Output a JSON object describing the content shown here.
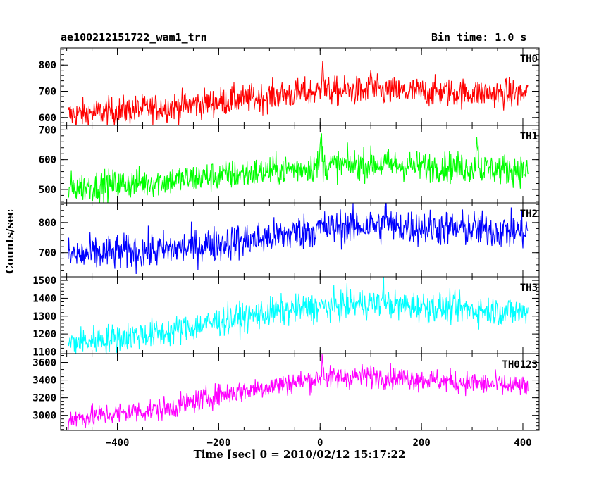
{
  "header": {
    "title": "ae100212151722_wam1_trn",
    "bin_time": "Bin time: 1.0 s"
  },
  "axes": {
    "xlabel": "Time [sec] 0 = 2010/02/12 15:17:22",
    "ylabel": "Counts/sec",
    "x_ticks": [
      "−400",
      "−200",
      "0",
      "200",
      "400"
    ],
    "x_tick_values": [
      -400,
      -200,
      0,
      200,
      400
    ],
    "xlim": [
      -512,
      432
    ]
  },
  "chart_data": [
    {
      "type": "line",
      "name": "TH0",
      "color": "#ff0000",
      "ylim": [
        570,
        865
      ],
      "y_ticks": [
        600,
        700,
        800
      ],
      "x_start": -497,
      "x_end": 410,
      "trend": [
        [
          -497,
          610
        ],
        [
          -300,
          640
        ],
        [
          -100,
          680
        ],
        [
          0,
          700
        ],
        [
          100,
          700
        ],
        [
          410,
          690
        ]
      ],
      "noise": 28,
      "spikes": [
        {
          "x": 5,
          "y": 855
        },
        {
          "x": 100,
          "y": 790
        }
      ],
      "x_range": [
        -497,
        410
      ]
    },
    {
      "type": "line",
      "name": "TH1",
      "color": "#00ff00",
      "ylim": [
        455,
        715
      ],
      "y_ticks": [
        500,
        600,
        700
      ],
      "x_start": -497,
      "x_end": 410,
      "trend": [
        [
          -497,
          505
        ],
        [
          -300,
          530
        ],
        [
          -100,
          560
        ],
        [
          0,
          580
        ],
        [
          100,
          585
        ],
        [
          410,
          565
        ]
      ],
      "noise": 26,
      "spikes": [
        {
          "x": 2,
          "y": 700
        },
        {
          "x": 310,
          "y": 700
        }
      ],
      "x_range": [
        -497,
        410
      ]
    },
    {
      "type": "line",
      "name": "TH2",
      "color": "#0000ff",
      "ylim": [
        620,
        865
      ],
      "y_ticks": [
        700,
        800
      ],
      "x_start": -497,
      "x_end": 410,
      "trend": [
        [
          -497,
          690
        ],
        [
          -300,
          710
        ],
        [
          -100,
          750
        ],
        [
          0,
          780
        ],
        [
          100,
          790
        ],
        [
          410,
          770
        ]
      ],
      "noise": 30,
      "spikes": [
        {
          "x": 130,
          "y": 870
        }
      ],
      "x_range": [
        -497,
        410
      ]
    },
    {
      "type": "line",
      "name": "TH3",
      "color": "#00ffff",
      "ylim": [
        1090,
        1520
      ],
      "y_ticks": [
        1100,
        1200,
        1300,
        1400,
        1500
      ],
      "x_start": -497,
      "x_end": 410,
      "trend": [
        [
          -497,
          1150
        ],
        [
          -300,
          1210
        ],
        [
          -200,
          1270
        ],
        [
          -100,
          1320
        ],
        [
          0,
          1350
        ],
        [
          100,
          1370
        ],
        [
          410,
          1320
        ]
      ],
      "noise": 42,
      "spikes": [
        {
          "x": 125,
          "y": 1510
        }
      ],
      "x_range": [
        -497,
        410
      ]
    },
    {
      "type": "line",
      "name": "TH0123",
      "color": "#ff00ff",
      "ylim": [
        2830,
        3700
      ],
      "y_ticks": [
        3000,
        3200,
        3400,
        3600
      ],
      "x_start": -497,
      "x_end": 410,
      "trend": [
        [
          -497,
          2960
        ],
        [
          -300,
          3080
        ],
        [
          -200,
          3230
        ],
        [
          -100,
          3330
        ],
        [
          0,
          3420
        ],
        [
          100,
          3450
        ],
        [
          410,
          3320
        ]
      ],
      "noise": 65,
      "spikes": [
        {
          "x": 5,
          "y": 3680
        }
      ],
      "x_range": [
        -497,
        410
      ]
    }
  ]
}
